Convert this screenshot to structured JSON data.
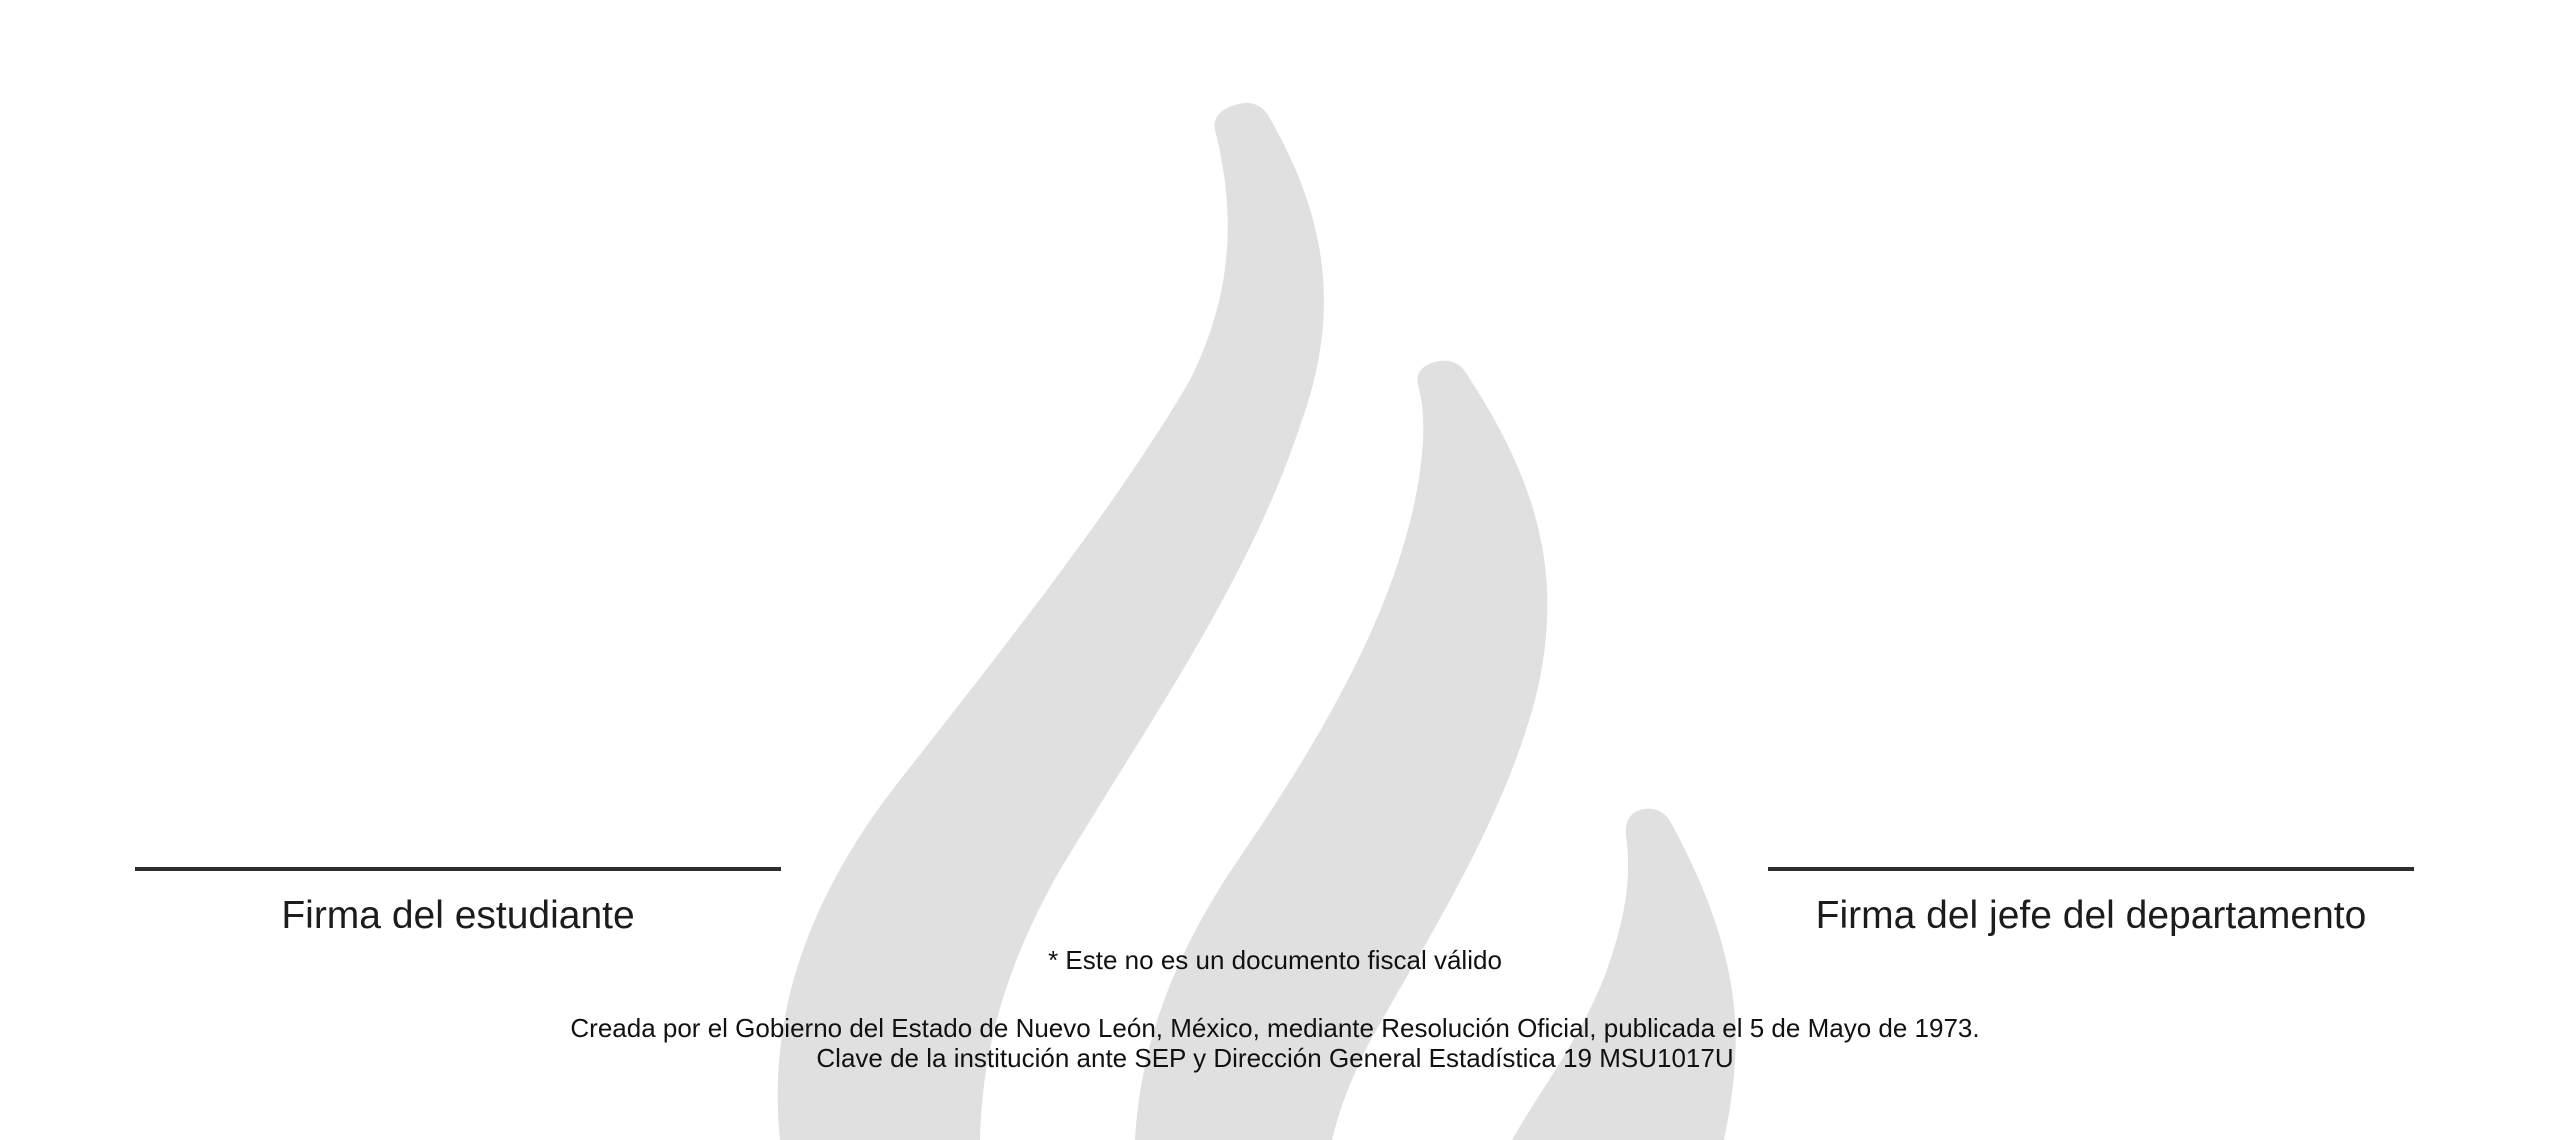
{
  "watermark": {
    "icon": "flame-logo-icon",
    "color": "#e0e0e0"
  },
  "signatures": {
    "student_label": "Firma del estudiante",
    "department_head_label": "Firma del jefe del departamento"
  },
  "notice": "* Este no es un documento fiscal válido",
  "footer": {
    "line1": "Creada por el Gobierno del Estado de Nuevo León, México, mediante Resolución Oficial, publicada el 5 de Mayo de 1973.",
    "line2": "Clave de la institución ante SEP y Dirección General Estadística 19 MSU1017U"
  }
}
